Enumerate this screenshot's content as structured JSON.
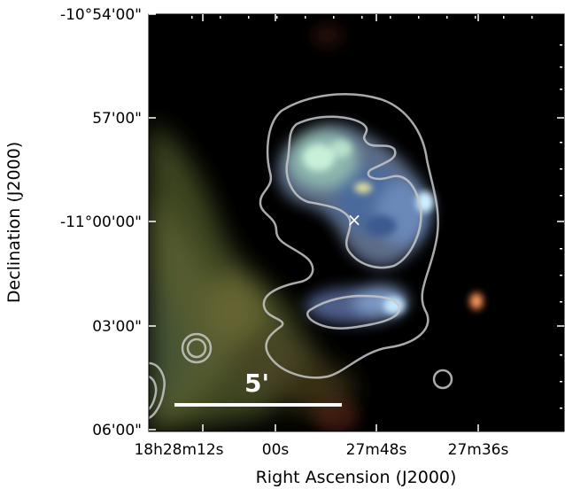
{
  "figure": {
    "y_axis_title": "Declination (J2000)",
    "x_axis_title": "Right Ascension (J2000)",
    "y_tick_labels": [
      "-10°54'00\"",
      "57'00\"",
      "-11°00'00\"",
      "03'00\"",
      "06'00\""
    ],
    "x_tick_labels": [
      "18h28m12s",
      "00s",
      "27m48s",
      "27m36s"
    ],
    "scale_bar_label": "5'",
    "marker_symbol": "×",
    "colors": {
      "background": "#000000",
      "contour": "#c8c8c8",
      "marker": "#ffffff",
      "scale_bar": "#ffffff",
      "emission_green": "#4e5a2a",
      "emission_cyan": "#9fe0d8",
      "emission_blue": "#3c5a8c",
      "hotspot_red": "#d86a3a"
    }
  }
}
